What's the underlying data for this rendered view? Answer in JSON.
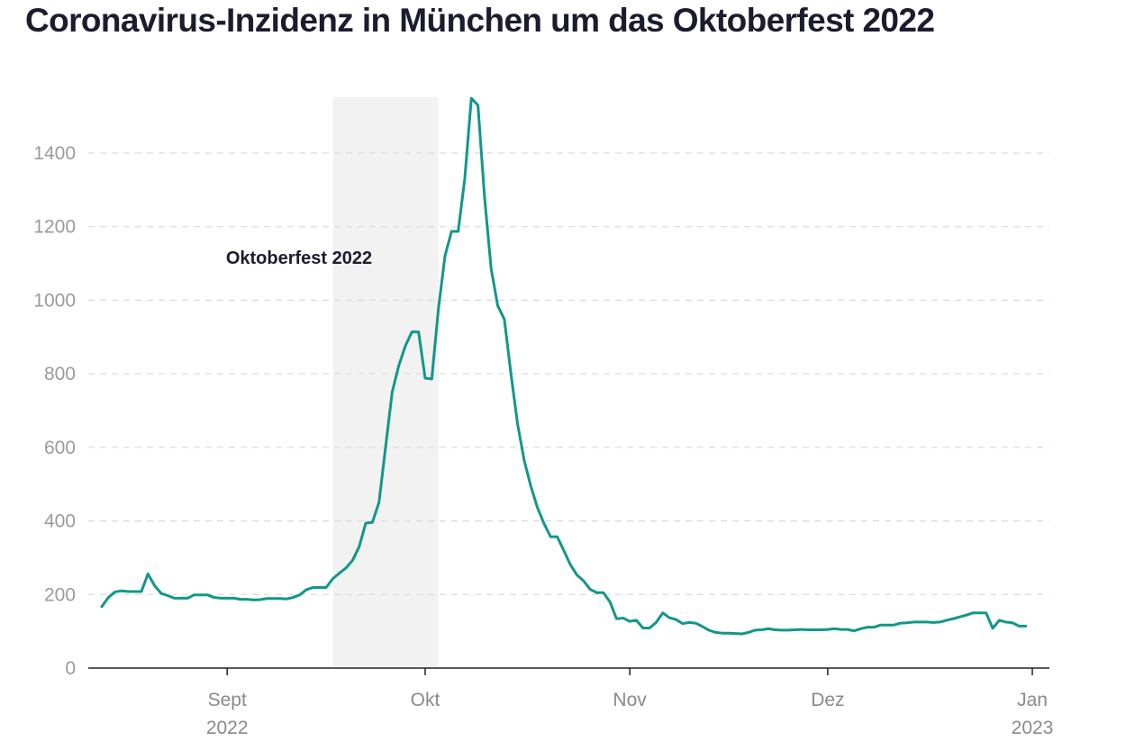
{
  "chart_data": {
    "type": "line",
    "title": "Coronavirus-Inzidenz in München um das Oktoberfest 2022",
    "xlabel": "",
    "ylabel": "",
    "x_range": [
      "2022-08-13",
      "2023-01-01"
    ],
    "ylim": [
      0,
      1550
    ],
    "yticks": [
      0,
      200,
      400,
      600,
      800,
      1000,
      1200,
      1400
    ],
    "grid": true,
    "legend": "none",
    "line_color": "#11978b",
    "xticks": [
      {
        "date": "2022-09-01",
        "label": "Sept",
        "sublabel": "2022"
      },
      {
        "date": "2022-10-01",
        "label": "Okt",
        "sublabel": ""
      },
      {
        "date": "2022-11-01",
        "label": "Nov",
        "sublabel": ""
      },
      {
        "date": "2022-12-01",
        "label": "Dez",
        "sublabel": ""
      },
      {
        "date": "2023-01-01",
        "label": "Jan",
        "sublabel": "2023"
      }
    ],
    "highlight": {
      "start": "2022-09-17",
      "end": "2022-10-03",
      "label": "Oktoberfest 2022",
      "color": "#f2f2f2"
    },
    "series": [
      {
        "name": "",
        "points": [
          [
            "2022-08-13",
            167
          ],
          [
            "2022-08-14",
            192
          ],
          [
            "2022-08-15",
            207
          ],
          [
            "2022-08-16",
            210
          ],
          [
            "2022-08-17",
            208
          ],
          [
            "2022-08-18",
            208
          ],
          [
            "2022-08-19",
            208
          ],
          [
            "2022-08-20",
            256
          ],
          [
            "2022-08-21",
            224
          ],
          [
            "2022-08-22",
            203
          ],
          [
            "2022-08-23",
            197
          ],
          [
            "2022-08-24",
            190
          ],
          [
            "2022-08-25",
            190
          ],
          [
            "2022-08-26",
            190
          ],
          [
            "2022-08-27",
            199
          ],
          [
            "2022-08-28",
            199
          ],
          [
            "2022-08-29",
            199
          ],
          [
            "2022-08-30",
            192
          ],
          [
            "2022-08-31",
            190
          ],
          [
            "2022-09-01",
            190
          ],
          [
            "2022-09-02",
            190
          ],
          [
            "2022-09-03",
            187
          ],
          [
            "2022-09-04",
            187
          ],
          [
            "2022-09-05",
            185
          ],
          [
            "2022-09-06",
            186
          ],
          [
            "2022-09-07",
            189
          ],
          [
            "2022-09-08",
            189
          ],
          [
            "2022-09-09",
            189
          ],
          [
            "2022-09-10",
            188
          ],
          [
            "2022-09-11",
            192
          ],
          [
            "2022-09-12",
            199
          ],
          [
            "2022-09-13",
            213
          ],
          [
            "2022-09-14",
            219
          ],
          [
            "2022-09-15",
            219
          ],
          [
            "2022-09-16",
            219
          ],
          [
            "2022-09-17",
            243
          ],
          [
            "2022-09-18",
            258
          ],
          [
            "2022-09-19",
            272
          ],
          [
            "2022-09-20",
            293
          ],
          [
            "2022-09-21",
            330
          ],
          [
            "2022-09-22",
            394
          ],
          [
            "2022-09-23",
            396
          ],
          [
            "2022-09-24",
            450
          ],
          [
            "2022-09-25",
            600
          ],
          [
            "2022-09-26",
            750
          ],
          [
            "2022-09-27",
            822
          ],
          [
            "2022-09-28",
            876
          ],
          [
            "2022-09-29",
            914
          ],
          [
            "2022-09-30",
            914
          ],
          [
            "2022-10-01",
            788
          ],
          [
            "2022-10-02",
            786
          ],
          [
            "2022-10-03",
            975
          ],
          [
            "2022-10-04",
            1120
          ],
          [
            "2022-10-05",
            1187
          ],
          [
            "2022-10-06",
            1187
          ],
          [
            "2022-10-07",
            1330
          ],
          [
            "2022-10-08",
            1549
          ],
          [
            "2022-10-09",
            1530
          ],
          [
            "2022-10-10",
            1280
          ],
          [
            "2022-10-11",
            1085
          ],
          [
            "2022-10-12",
            985
          ],
          [
            "2022-10-13",
            948
          ],
          [
            "2022-10-14",
            800
          ],
          [
            "2022-10-15",
            664
          ],
          [
            "2022-10-16",
            565
          ],
          [
            "2022-10-17",
            495
          ],
          [
            "2022-10-18",
            437
          ],
          [
            "2022-10-19",
            393
          ],
          [
            "2022-10-20",
            357
          ],
          [
            "2022-10-21",
            357
          ],
          [
            "2022-10-22",
            320
          ],
          [
            "2022-10-23",
            281
          ],
          [
            "2022-10-24",
            253
          ],
          [
            "2022-10-25",
            237
          ],
          [
            "2022-10-26",
            214
          ],
          [
            "2022-10-27",
            205
          ],
          [
            "2022-10-28",
            205
          ],
          [
            "2022-10-29",
            180
          ],
          [
            "2022-10-30",
            134
          ],
          [
            "2022-10-31",
            136
          ],
          [
            "2022-11-01",
            127
          ],
          [
            "2022-11-02",
            130
          ],
          [
            "2022-11-03",
            109
          ],
          [
            "2022-11-04",
            109
          ],
          [
            "2022-11-05",
            124
          ],
          [
            "2022-11-06",
            150
          ],
          [
            "2022-11-07",
            137
          ],
          [
            "2022-11-08",
            132
          ],
          [
            "2022-11-09",
            121
          ],
          [
            "2022-11-10",
            124
          ],
          [
            "2022-11-11",
            122
          ],
          [
            "2022-11-12",
            113
          ],
          [
            "2022-11-13",
            103
          ],
          [
            "2022-11-14",
            97
          ],
          [
            "2022-11-15",
            95
          ],
          [
            "2022-11-16",
            95
          ],
          [
            "2022-11-17",
            94
          ],
          [
            "2022-11-18",
            93
          ],
          [
            "2022-11-19",
            97
          ],
          [
            "2022-11-20",
            103
          ],
          [
            "2022-11-21",
            104
          ],
          [
            "2022-11-22",
            107
          ],
          [
            "2022-11-23",
            104
          ],
          [
            "2022-11-24",
            103
          ],
          [
            "2022-11-25",
            103
          ],
          [
            "2022-11-26",
            104
          ],
          [
            "2022-11-27",
            105
          ],
          [
            "2022-11-28",
            104
          ],
          [
            "2022-11-29",
            104
          ],
          [
            "2022-11-30",
            104
          ],
          [
            "2022-12-01",
            105
          ],
          [
            "2022-12-02",
            107
          ],
          [
            "2022-12-03",
            105
          ],
          [
            "2022-12-04",
            105
          ],
          [
            "2022-12-05",
            101
          ],
          [
            "2022-12-06",
            107
          ],
          [
            "2022-12-07",
            111
          ],
          [
            "2022-12-08",
            111
          ],
          [
            "2022-12-09",
            117
          ],
          [
            "2022-12-10",
            117
          ],
          [
            "2022-12-11",
            117
          ],
          [
            "2022-12-12",
            122
          ],
          [
            "2022-12-13",
            123
          ],
          [
            "2022-12-14",
            125
          ],
          [
            "2022-12-15",
            125
          ],
          [
            "2022-12-16",
            125
          ],
          [
            "2022-12-17",
            124
          ],
          [
            "2022-12-18",
            125
          ],
          [
            "2022-12-19",
            130
          ],
          [
            "2022-12-20",
            134
          ],
          [
            "2022-12-21",
            139
          ],
          [
            "2022-12-22",
            144
          ],
          [
            "2022-12-23",
            150
          ],
          [
            "2022-12-24",
            150
          ],
          [
            "2022-12-25",
            150
          ],
          [
            "2022-12-26",
            108
          ],
          [
            "2022-12-27",
            130
          ],
          [
            "2022-12-28",
            125
          ],
          [
            "2022-12-29",
            123
          ],
          [
            "2022-12-30",
            114
          ],
          [
            "2022-12-31",
            114
          ]
        ]
      }
    ]
  }
}
